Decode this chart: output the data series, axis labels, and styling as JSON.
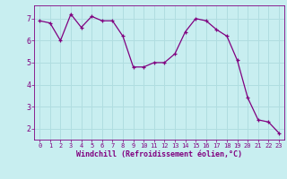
{
  "x": [
    0,
    1,
    2,
    3,
    4,
    5,
    6,
    7,
    8,
    9,
    10,
    11,
    12,
    13,
    14,
    15,
    16,
    17,
    18,
    19,
    20,
    21,
    22,
    23
  ],
  "y": [
    6.9,
    6.8,
    6.0,
    7.2,
    6.6,
    7.1,
    6.9,
    6.9,
    6.2,
    4.8,
    4.8,
    5.0,
    5.0,
    5.4,
    6.4,
    7.0,
    6.9,
    6.5,
    6.2,
    5.1,
    3.4,
    2.4,
    2.3,
    1.8
  ],
  "line_color": "#800080",
  "marker": "+",
  "marker_size": 3,
  "bg_color": "#c8eef0",
  "grid_color": "#b0dde0",
  "axis_color": "#800080",
  "xlabel": "Windchill (Refroidissement éolien,°C)",
  "ylim": [
    1.5,
    7.6
  ],
  "xlim": [
    -0.5,
    23.5
  ],
  "yticks": [
    2,
    3,
    4,
    5,
    6,
    7
  ],
  "xticks": [
    0,
    1,
    2,
    3,
    4,
    5,
    6,
    7,
    8,
    9,
    10,
    11,
    12,
    13,
    14,
    15,
    16,
    17,
    18,
    19,
    20,
    21,
    22,
    23
  ],
  "title": ""
}
